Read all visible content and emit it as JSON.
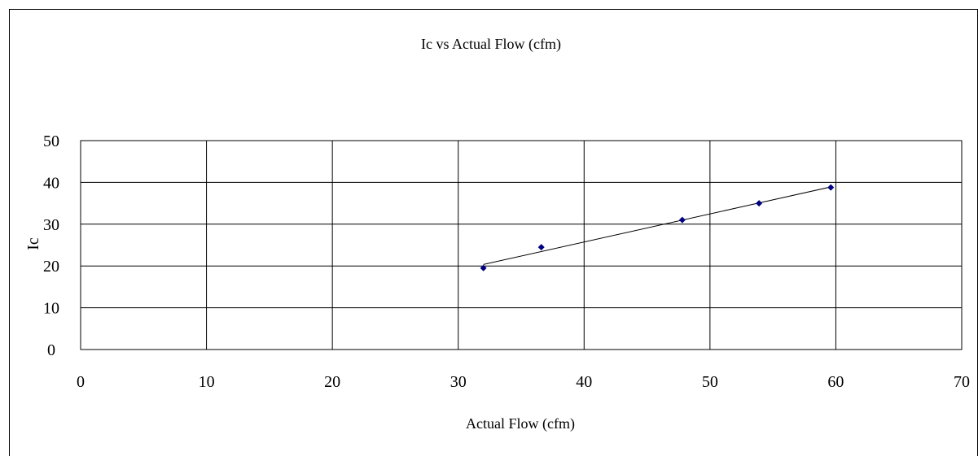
{
  "chart_data": {
    "type": "scatter",
    "title": "Ic vs Actual Flow (cfm)",
    "xlabel": "Actual Flow (cfm)",
    "ylabel": "Ic",
    "xlim": [
      0,
      70
    ],
    "ylim": [
      0,
      50
    ],
    "x_ticks": [
      0,
      10,
      20,
      30,
      40,
      50,
      60,
      70
    ],
    "y_ticks": [
      0,
      10,
      20,
      30,
      40,
      50
    ],
    "grid": true,
    "legend": "none",
    "marker_color": "#000080",
    "series": [
      {
        "points": [
          {
            "x": 32.0,
            "y": 19.5
          },
          {
            "x": 36.6,
            "y": 24.5
          },
          {
            "x": 47.8,
            "y": 31.0
          },
          {
            "x": 53.9,
            "y": 35.0
          },
          {
            "x": 59.6,
            "y": 38.8
          }
        ],
        "trendline": {
          "type": "linear",
          "x_range": [
            32.0,
            59.6
          ]
        }
      }
    ]
  }
}
